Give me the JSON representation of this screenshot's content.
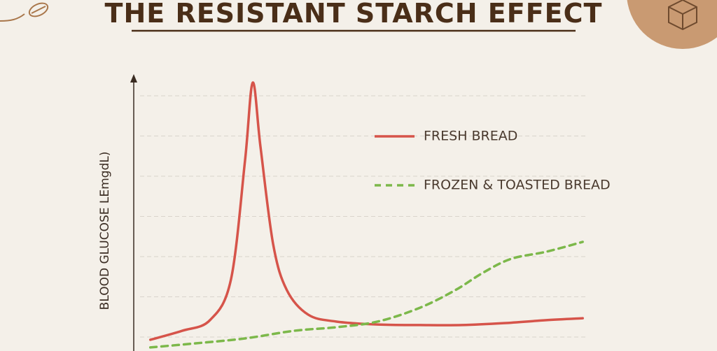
{
  "chart_data": {
    "type": "line",
    "title": "THE RESISTANT STARCH EFFECT",
    "y_label": "BLOOD GLUCOSE LEmgdL)",
    "xlim": [
      0,
      100
    ],
    "ylim": [
      0,
      100
    ],
    "grid": true,
    "legend": "upper right",
    "series": [
      {
        "name": "FRESH BREAD",
        "color": "#d6544a",
        "style": "solid",
        "x": [
          3.8,
          10.8,
          16.9,
          21.5,
          24.6,
          26.3,
          28,
          30.8,
          33.8,
          38.5,
          44.6,
          53.8,
          63.1,
          72.3,
          81.5,
          90.8,
          98.8
        ],
        "values": [
          3.6,
          6.9,
          10.8,
          25.6,
          69.2,
          97.9,
          74.4,
          38.5,
          21.8,
          12.8,
          10.3,
          9.2,
          9,
          9,
          9.7,
          10.8,
          11.5
        ]
      },
      {
        "name": "FROZEN & TOASTED BREAD",
        "color": "#7cb84a",
        "style": "dashed",
        "x": [
          3.8,
          13.8,
          24.6,
          35.4,
          44.6,
          53.8,
          63.1,
          70.8,
          76.9,
          83.1,
          90.8,
          98.8
        ],
        "values": [
          0.8,
          2.3,
          4.1,
          6.9,
          8.2,
          10.3,
          15.4,
          21.8,
          28.2,
          33.3,
          35.9,
          39.5
        ]
      }
    ]
  }
}
